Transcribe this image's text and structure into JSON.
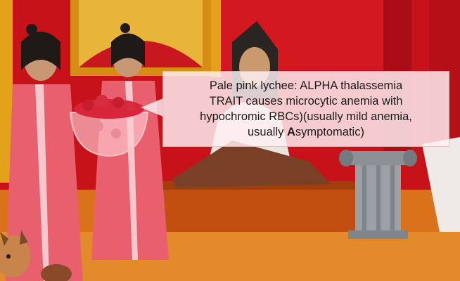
{
  "callout": {
    "line1": "Pale pink lychee: ALPHA thalassemia",
    "line2": "TRAIT causes microcytic anemia with",
    "line3": "hypochromic RBCs)(usually mild anemia,",
    "line4_prefix": "usually ",
    "line4_bold": "A",
    "line4_suffix": "symptomatic)"
  },
  "colors": {
    "wall_red": "#c8121a",
    "gold_trim": "#e3a21a",
    "robe_pink": "#e8606e",
    "floor_orange": "#d9721b",
    "callout_bg": "#fff0f3"
  },
  "icons": [
    "servant-woman",
    "lychee-bowl",
    "seated-figure",
    "stone-pedestal",
    "dog-head"
  ]
}
